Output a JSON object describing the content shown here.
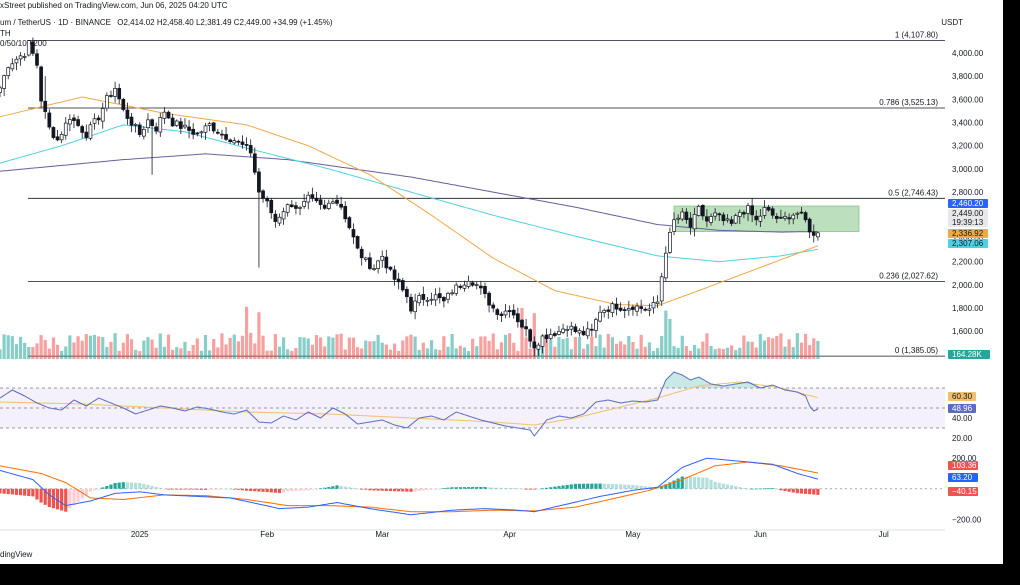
{
  "header": {
    "published": "xStreet published on TradingView.com, Jun 06, 2025 04:20 UTC",
    "symbol_line": "um / TetherUS · 1D · BINANCE",
    "ohlc": "O2,414.02  H2,458.40  L2,381.49  C2,449.00  +34.99 (+1.45%)",
    "sub1": "TH",
    "sub2": "0/50/100/200",
    "unit": "USDT",
    "footer": "dingView"
  },
  "colors": {
    "up": "#26a69a",
    "down": "#ef5350",
    "ma50": "#f0a848",
    "ma100": "#4dd0e1",
    "ma200": "#6a5c9c",
    "rsi": "#5b6bc0",
    "rsi_ma": "#f0c070",
    "macd": "#2962ff",
    "signal": "#ff6d00",
    "range_box": "#a5d6a7"
  },
  "chart_data": [
    {
      "type": "candlestick",
      "title": "um / TetherUS 1D BINANCE",
      "ylabel": "USDT",
      "ylim": [
        1300,
        4250
      ],
      "yticks": [
        "4,000.00",
        "3,800.00",
        "3,600.00",
        "3,400.00",
        "3,200.00",
        "3,000.00",
        "2,800.00",
        "2,600.00",
        "2,400.00",
        "2,200.00",
        "2,000.00",
        "1,800.00",
        "1,600.00",
        "1,400.00"
      ],
      "yticks_values": [
        4000,
        3800,
        3600,
        3400,
        3200,
        3000,
        2800,
        2600,
        2400,
        2200,
        2000,
        1800,
        1600,
        1400
      ],
      "x_month_labels": [
        {
          "label": "2025",
          "day": 34
        },
        {
          "label": "Feb",
          "day": 65
        },
        {
          "label": "Mar",
          "day": 93
        },
        {
          "label": "Apr",
          "day": 124
        },
        {
          "label": "May",
          "day": 154
        },
        {
          "label": "Jun",
          "day": 185
        },
        {
          "label": "Jul",
          "day": 215
        }
      ],
      "fib_levels": [
        {
          "label": "1 (4,107.80)",
          "value": 4107.8
        },
        {
          "label": "0.786 (3,525.13)",
          "value": 3525.13
        },
        {
          "label": "0.5 (2,746.43)",
          "value": 2746.43
        },
        {
          "label": "0.236 (2,027.62)",
          "value": 2027.62
        },
        {
          "label": "0 (1,385.05)",
          "value": 1385.05
        }
      ],
      "range_box": {
        "day_from": 164,
        "day_to": 209,
        "low": 2460,
        "high": 2680
      },
      "last_day": 199,
      "price_labels": [
        {
          "text": "2,460.20",
          "value": 2460.2,
          "color": "#2962ff"
        },
        {
          "text": "2,449.00",
          "value": 2449.0,
          "color": "#e8e8e8"
        },
        {
          "text": "19:39:13",
          "value": 2360,
          "color": "#e8e8e8"
        },
        {
          "text": "2,336.92",
          "value": 2336.92,
          "color": "#f0a848"
        },
        {
          "text": "2,307.06",
          "value": 2307.06,
          "color": "#4dd0e1"
        }
      ],
      "volume": {
        "label": "164.28K"
      },
      "close_anchors": [
        [
          0,
          3700
        ],
        [
          2,
          3900
        ],
        [
          4,
          3950
        ],
        [
          6,
          4000
        ],
        [
          7,
          4080
        ],
        [
          9,
          3900
        ],
        [
          10,
          3600
        ],
        [
          12,
          3350
        ],
        [
          14,
          3250
        ],
        [
          17,
          3450
        ],
        [
          21,
          3300
        ],
        [
          24,
          3450
        ],
        [
          26,
          3600
        ],
        [
          28,
          3700
        ],
        [
          30,
          3500
        ],
        [
          32,
          3400
        ],
        [
          34,
          3300
        ],
        [
          36,
          3420
        ],
        [
          38,
          3350
        ],
        [
          40,
          3500
        ],
        [
          42,
          3400
        ],
        [
          45,
          3350
        ],
        [
          48,
          3300
        ],
        [
          51,
          3380
        ],
        [
          54,
          3300
        ],
        [
          57,
          3250
        ],
        [
          59,
          3200
        ],
        [
          61,
          3150
        ],
        [
          63,
          2800
        ],
        [
          65,
          2700
        ],
        [
          67,
          2550
        ],
        [
          69,
          2650
        ],
        [
          71,
          2700
        ],
        [
          73,
          2650
        ],
        [
          75,
          2740
        ],
        [
          77,
          2700
        ],
        [
          79,
          2650
        ],
        [
          81,
          2750
        ],
        [
          83,
          2680
        ],
        [
          85,
          2500
        ],
        [
          87,
          2300
        ],
        [
          89,
          2200
        ],
        [
          91,
          2150
        ],
        [
          93,
          2250
        ],
        [
          95,
          2100
        ],
        [
          97,
          2000
        ],
        [
          99,
          1900
        ],
        [
          100,
          1800
        ],
        [
          102,
          1880
        ],
        [
          104,
          1900
        ],
        [
          106,
          1900
        ],
        [
          108,
          1850
        ],
        [
          110,
          1950
        ],
        [
          112,
          2000
        ],
        [
          114,
          2060
        ],
        [
          116,
          2000
        ],
        [
          118,
          1900
        ],
        [
          120,
          1800
        ],
        [
          122,
          1750
        ],
        [
          124,
          1800
        ],
        [
          126,
          1700
        ],
        [
          128,
          1600
        ],
        [
          130,
          1480
        ],
        [
          132,
          1550
        ],
        [
          134,
          1580
        ],
        [
          136,
          1600
        ],
        [
          138,
          1650
        ],
        [
          140,
          1600
        ],
        [
          142,
          1580
        ],
        [
          144,
          1600
        ],
        [
          146,
          1780
        ],
        [
          148,
          1800
        ],
        [
          150,
          1820
        ],
        [
          152,
          1800
        ],
        [
          154,
          1820
        ],
        [
          156,
          1800
        ],
        [
          158,
          1790
        ],
        [
          160,
          1850
        ],
        [
          162,
          2300
        ],
        [
          164,
          2550
        ],
        [
          166,
          2600
        ],
        [
          168,
          2500
        ],
        [
          170,
          2650
        ],
        [
          172,
          2550
        ],
        [
          174,
          2600
        ],
        [
          176,
          2550
        ],
        [
          178,
          2520
        ],
        [
          180,
          2630
        ],
        [
          182,
          2650
        ],
        [
          184,
          2550
        ],
        [
          186,
          2650
        ],
        [
          188,
          2600
        ],
        [
          190,
          2550
        ],
        [
          192,
          2600
        ],
        [
          194,
          2620
        ],
        [
          196,
          2550
        ],
        [
          197,
          2480
        ],
        [
          198,
          2414
        ],
        [
          199,
          2449
        ]
      ],
      "ma50_anchors": [
        [
          0,
          3450
        ],
        [
          20,
          3620
        ],
        [
          40,
          3480
        ],
        [
          60,
          3380
        ],
        [
          75,
          3200
        ],
        [
          90,
          2950
        ],
        [
          105,
          2600
        ],
        [
          120,
          2230
        ],
        [
          135,
          1950
        ],
        [
          150,
          1830
        ],
        [
          160,
          1820
        ],
        [
          170,
          1950
        ],
        [
          185,
          2150
        ],
        [
          199,
          2337
        ]
      ],
      "ma100_anchors": [
        [
          0,
          3050
        ],
        [
          15,
          3200
        ],
        [
          30,
          3380
        ],
        [
          45,
          3320
        ],
        [
          60,
          3180
        ],
        [
          80,
          3000
        ],
        [
          100,
          2800
        ],
        [
          120,
          2600
        ],
        [
          140,
          2420
        ],
        [
          160,
          2250
        ],
        [
          175,
          2200
        ],
        [
          190,
          2250
        ],
        [
          199,
          2307
        ]
      ],
      "ma200_anchors": [
        [
          0,
          2980
        ],
        [
          30,
          3080
        ],
        [
          50,
          3130
        ],
        [
          70,
          3080
        ],
        [
          100,
          2930
        ],
        [
          120,
          2800
        ],
        [
          140,
          2670
        ],
        [
          160,
          2520
        ],
        [
          175,
          2470
        ],
        [
          190,
          2455
        ],
        [
          199,
          2460
        ]
      ]
    },
    {
      "type": "line",
      "title": "RSI",
      "ylim": [
        15,
        95
      ],
      "yticks": [
        "60.00",
        "40.00",
        "20.00"
      ],
      "yticks_values": [
        60,
        40,
        20
      ],
      "band": [
        30,
        70
      ],
      "value_labels": [
        {
          "text": "60.30",
          "value": 60.3,
          "color": "#f0c070"
        },
        {
          "text": "48.96",
          "value": 48.96,
          "color": "#5b6bc0"
        }
      ],
      "rsi_anchors": [
        [
          0,
          60
        ],
        [
          3,
          68
        ],
        [
          6,
          62
        ],
        [
          9,
          55
        ],
        [
          12,
          50
        ],
        [
          15,
          48
        ],
        [
          18,
          58
        ],
        [
          21,
          52
        ],
        [
          24,
          60
        ],
        [
          27,
          55
        ],
        [
          30,
          50
        ],
        [
          33,
          44
        ],
        [
          36,
          48
        ],
        [
          39,
          52
        ],
        [
          42,
          50
        ],
        [
          45,
          47
        ],
        [
          48,
          51
        ],
        [
          51,
          49
        ],
        [
          54,
          46
        ],
        [
          57,
          44
        ],
        [
          60,
          48
        ],
        [
          63,
          36
        ],
        [
          66,
          35
        ],
        [
          69,
          42
        ],
        [
          72,
          38
        ],
        [
          75,
          46
        ],
        [
          78,
          40
        ],
        [
          81,
          50
        ],
        [
          84,
          44
        ],
        [
          87,
          34
        ],
        [
          90,
          36
        ],
        [
          93,
          38
        ],
        [
          96,
          33
        ],
        [
          99,
          30
        ],
        [
          102,
          40
        ],
        [
          105,
          42
        ],
        [
          108,
          38
        ],
        [
          111,
          46
        ],
        [
          114,
          42
        ],
        [
          117,
          38
        ],
        [
          120,
          35
        ],
        [
          123,
          32
        ],
        [
          126,
          30
        ],
        [
          129,
          28
        ],
        [
          130,
          22
        ],
        [
          133,
          38
        ],
        [
          136,
          42
        ],
        [
          139,
          40
        ],
        [
          142,
          44
        ],
        [
          145,
          56
        ],
        [
          148,
          58
        ],
        [
          151,
          55
        ],
        [
          154,
          57
        ],
        [
          157,
          56
        ],
        [
          160,
          58
        ],
        [
          162,
          78
        ],
        [
          164,
          86
        ],
        [
          166,
          83
        ],
        [
          168,
          78
        ],
        [
          170,
          81
        ],
        [
          173,
          74
        ],
        [
          176,
          72
        ],
        [
          179,
          74
        ],
        [
          182,
          76
        ],
        [
          185,
          70
        ],
        [
          188,
          73
        ],
        [
          191,
          68
        ],
        [
          194,
          66
        ],
        [
          196,
          62
        ],
        [
          197,
          52
        ],
        [
          198,
          47
        ],
        [
          199,
          48.96
        ]
      ],
      "rsi_ma_anchors": [
        [
          0,
          56
        ],
        [
          20,
          54
        ],
        [
          40,
          50
        ],
        [
          60,
          46
        ],
        [
          80,
          44
        ],
        [
          100,
          40
        ],
        [
          120,
          36
        ],
        [
          130,
          33
        ],
        [
          140,
          40
        ],
        [
          150,
          50
        ],
        [
          160,
          60
        ],
        [
          170,
          72
        ],
        [
          180,
          76
        ],
        [
          190,
          70
        ],
        [
          199,
          60.3
        ]
      ]
    },
    {
      "type": "line",
      "title": "MACD",
      "ylim": [
        -250,
        260
      ],
      "yticks": [
        "200.00",
        "−200.00"
      ],
      "yticks_values": [
        200,
        -200
      ],
      "value_labels": [
        {
          "text": "103.36",
          "value": 103.36,
          "color": "#ef5350"
        },
        {
          "text": "63.20",
          "value": 63.2,
          "color": "#2962ff"
        },
        {
          "text": "−40.15",
          "value": -40.15,
          "color": "#ef5350"
        }
      ],
      "macd_anchors": [
        [
          0,
          120
        ],
        [
          8,
          60
        ],
        [
          12,
          -40
        ],
        [
          16,
          -110
        ],
        [
          22,
          -80
        ],
        [
          28,
          -30
        ],
        [
          34,
          -20
        ],
        [
          40,
          -40
        ],
        [
          48,
          -50
        ],
        [
          56,
          -60
        ],
        [
          63,
          -100
        ],
        [
          68,
          -130
        ],
        [
          75,
          -120
        ],
        [
          82,
          -90
        ],
        [
          90,
          -130
        ],
        [
          100,
          -170
        ],
        [
          110,
          -140
        ],
        [
          118,
          -130
        ],
        [
          126,
          -140
        ],
        [
          130,
          -150
        ],
        [
          138,
          -100
        ],
        [
          146,
          -50
        ],
        [
          154,
          -10
        ],
        [
          160,
          10
        ],
        [
          166,
          140
        ],
        [
          172,
          200
        ],
        [
          180,
          180
        ],
        [
          188,
          160
        ],
        [
          194,
          100
        ],
        [
          199,
          63.2
        ]
      ],
      "signal_anchors": [
        [
          0,
          150
        ],
        [
          10,
          100
        ],
        [
          16,
          40
        ],
        [
          22,
          -60
        ],
        [
          30,
          -70
        ],
        [
          40,
          -40
        ],
        [
          50,
          -45
        ],
        [
          60,
          -70
        ],
        [
          70,
          -110
        ],
        [
          80,
          -110
        ],
        [
          90,
          -120
        ],
        [
          100,
          -150
        ],
        [
          110,
          -150
        ],
        [
          120,
          -140
        ],
        [
          130,
          -145
        ],
        [
          140,
          -120
        ],
        [
          150,
          -60
        ],
        [
          158,
          -10
        ],
        [
          166,
          60
        ],
        [
          174,
          150
        ],
        [
          182,
          175
        ],
        [
          190,
          150
        ],
        [
          199,
          103.36
        ]
      ]
    }
  ]
}
